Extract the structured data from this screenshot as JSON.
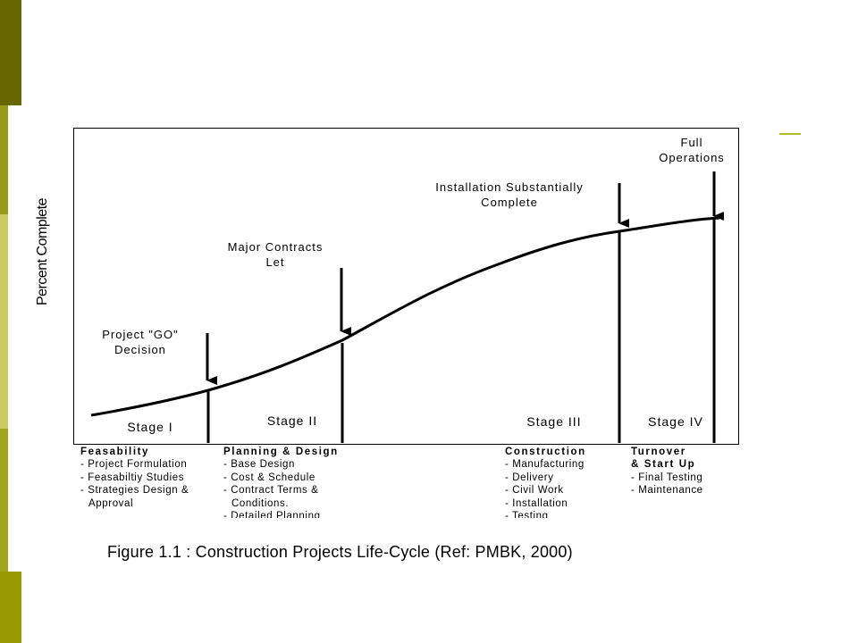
{
  "theme": {
    "sidebar_colors": [
      "#666600",
      "#99991a",
      "#cccc66",
      "#a3a31a",
      "#999900"
    ],
    "accent_color": "#b8b83a"
  },
  "diagram": {
    "y_axis_label": "Percent Complete",
    "milestones": [
      {
        "label": "Project \"GO\"\nDecision",
        "id": "project-go-decision"
      },
      {
        "label": "Major Contracts\nLet",
        "id": "major-contracts-let"
      },
      {
        "label": "Installation Substantially\nComplete",
        "id": "installation-substantially-complete"
      },
      {
        "label": "Full\nOperations",
        "id": "full-operations"
      }
    ],
    "stages": [
      "Stage I",
      "Stage II",
      "Stage III",
      "Stage IV"
    ],
    "phases": [
      {
        "title": "Feasability",
        "items": [
          "- Project Formulation",
          "- Feasabiltiy Studies",
          "- Strategies Design &",
          "Approval"
        ]
      },
      {
        "title": "Planning & Design",
        "items": [
          "- Base Design",
          "- Cost & Schedule",
          "- Contract Terms &",
          "Conditions.",
          "- Detailed Planning"
        ]
      },
      {
        "title": "Construction",
        "items": [
          "- Manufacturing",
          "- Delivery",
          "- Civil Work",
          "- Installation",
          "- Testing"
        ]
      },
      {
        "title": "Turnover\n& Start Up",
        "items": [
          "- Final Testing",
          "- Maintenance"
        ]
      }
    ]
  },
  "caption": "Figure 1.1 : Construction Projects Life-Cycle (Ref: PMBK, 2000)"
}
